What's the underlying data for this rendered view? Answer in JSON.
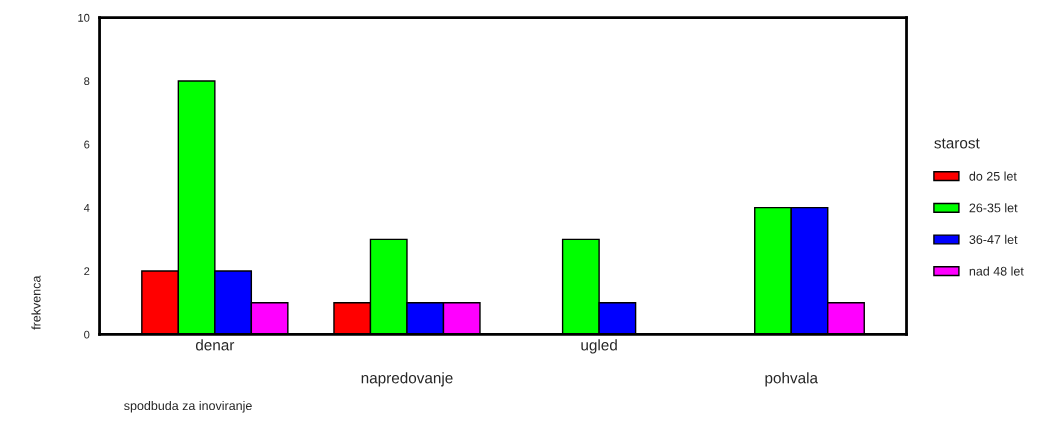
{
  "chart_data": {
    "type": "bar",
    "xlabel": "spodbuda za inoviranje",
    "ylabel": "frekvenca",
    "legend_title": "starost",
    "categories": [
      "denar",
      "napredovanje",
      "ugled",
      "pohvala"
    ],
    "series": [
      {
        "name": "do 25 let",
        "color": "#ff0000",
        "values": [
          2,
          1,
          null,
          null
        ]
      },
      {
        "name": "26-35 let",
        "color": "#00ff00",
        "values": [
          8,
          3,
          3,
          4
        ]
      },
      {
        "name": "36-47 let",
        "color": "#0000ff",
        "values": [
          2,
          1,
          1,
          4
        ]
      },
      {
        "name": "nad 48 let",
        "color": "#ff00ff",
        "values": [
          1,
          1,
          null,
          1
        ]
      }
    ],
    "ylim": [
      0,
      10
    ],
    "yticks": [
      0,
      2,
      4,
      6,
      8,
      10
    ],
    "grid": false,
    "legend": "right"
  }
}
